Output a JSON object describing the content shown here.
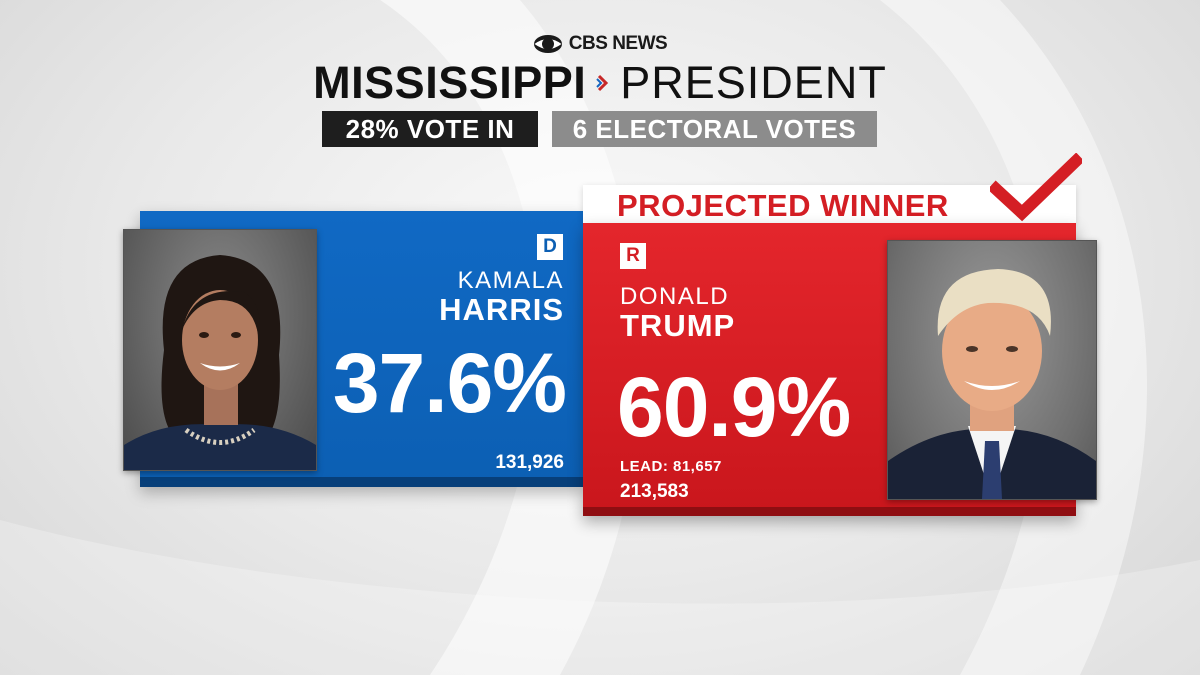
{
  "header": {
    "brand": "CBS NEWS",
    "state": "MISSISSIPPI",
    "race": "PRESIDENT",
    "vote_in": "28% VOTE IN",
    "electoral_votes": "6 ELECTORAL VOTES"
  },
  "candidates": {
    "harris": {
      "party_badge": "D",
      "first_name": "KAMALA",
      "last_name": "HARRIS",
      "percent": "37.6%",
      "votes": "131,926",
      "color": "#0c5fb3"
    },
    "trump": {
      "party_badge": "R",
      "first_name": "DONALD",
      "last_name": "TRUMP",
      "percent": "60.9%",
      "lead": "LEAD: 81,657",
      "votes": "213,583",
      "status": "PROJECTED WINNER",
      "color": "#d41e24"
    }
  },
  "icons": {
    "brand": "cbs-eye-icon",
    "separator": "chevron-right-icon",
    "winner": "checkmark-icon"
  }
}
